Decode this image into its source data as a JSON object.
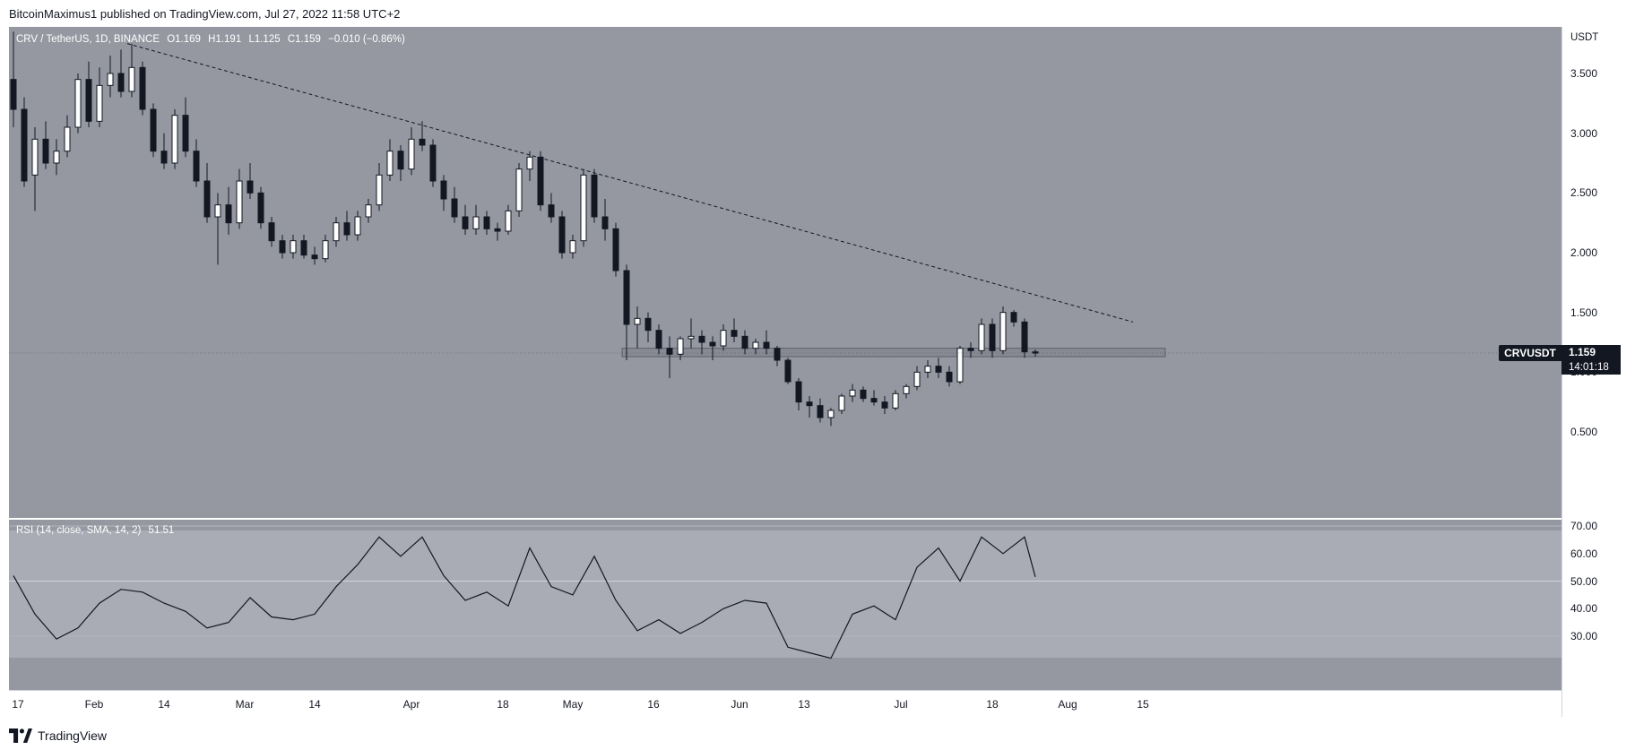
{
  "header": {
    "publisher_line": "BitcoinMaximus1 published on TradingView.com, Jul 27, 2022 11:58 UTC+2"
  },
  "footer": {
    "brand": "TradingView"
  },
  "price_pane": {
    "legend": {
      "symbol": "CRV / TetherUS, 1D, BINANCE",
      "open": "O1.169",
      "high": "H1.191",
      "low": "L1.125",
      "close": "C1.159",
      "change": "−0.010 (−0.86%)"
    },
    "axis_unit": "USDT",
    "y_ticks": [
      "3.500",
      "3.000",
      "2.500",
      "2.000",
      "1.500",
      "1.000",
      "0.500"
    ],
    "last": {
      "symbol": "CRVUSDT",
      "price": "1.159",
      "countdown": "14:01:18"
    }
  },
  "rsi_pane": {
    "legend": {
      "label": "RSI (14, close, SMA, 14, 2)",
      "value": "51.51"
    },
    "y_ticks": [
      "70.00",
      "60.00",
      "50.00",
      "40.00",
      "30.00"
    ]
  },
  "x_axis": {
    "labels": [
      "17",
      "Feb",
      "14",
      "Mar",
      "14",
      "Apr",
      "18",
      "May",
      "16",
      "Jun",
      "13",
      "Jul",
      "18",
      "Aug",
      "15"
    ]
  },
  "colors": {
    "background": "#9598a1",
    "rsi_band": "#a9acb4",
    "bull_candle": "#ffffff",
    "bear_candle": "#131722",
    "line": "#131722"
  },
  "chart_data": [
    {
      "type": "candlestick",
      "title": "CRV / TetherUS, 1D, BINANCE",
      "ylabel": "USDT",
      "ylim": [
        0.45,
        3.85
      ],
      "x_start": "2022-01-17",
      "x_end": "2022-07-27",
      "candles": [
        [
          "2022-01-17",
          3.45,
          3.85,
          3.05,
          3.2
        ],
        [
          "2022-01-19",
          3.2,
          3.3,
          2.55,
          2.6
        ],
        [
          "2022-01-21",
          2.65,
          3.05,
          2.35,
          2.95
        ],
        [
          "2022-01-23",
          2.95,
          3.1,
          2.7,
          2.75
        ],
        [
          "2022-01-25",
          2.75,
          2.95,
          2.65,
          2.85
        ],
        [
          "2022-01-27",
          2.85,
          3.15,
          2.8,
          3.05
        ],
        [
          "2022-01-29",
          3.05,
          3.5,
          3.0,
          3.45
        ],
        [
          "2022-01-31",
          3.45,
          3.6,
          3.05,
          3.1
        ],
        [
          "2022-02-02",
          3.1,
          3.55,
          3.05,
          3.4
        ],
        [
          "2022-02-04",
          3.4,
          3.65,
          3.3,
          3.5
        ],
        [
          "2022-02-06",
          3.5,
          3.7,
          3.3,
          3.35
        ],
        [
          "2022-02-08",
          3.35,
          3.75,
          3.3,
          3.55
        ],
        [
          "2022-02-10",
          3.55,
          3.6,
          3.15,
          3.2
        ],
        [
          "2022-02-12",
          3.2,
          3.25,
          2.8,
          2.85
        ],
        [
          "2022-02-14",
          2.85,
          3.0,
          2.7,
          2.75
        ],
        [
          "2022-02-16",
          2.75,
          3.2,
          2.7,
          3.15
        ],
        [
          "2022-02-18",
          3.15,
          3.3,
          2.8,
          2.85
        ],
        [
          "2022-02-20",
          2.85,
          2.95,
          2.55,
          2.6
        ],
        [
          "2022-02-22",
          2.6,
          2.75,
          2.25,
          2.3
        ],
        [
          "2022-02-24",
          2.3,
          2.5,
          1.9,
          2.4
        ],
        [
          "2022-02-26",
          2.4,
          2.55,
          2.15,
          2.25
        ],
        [
          "2022-02-28",
          2.25,
          2.7,
          2.2,
          2.6
        ],
        [
          "2022-03-02",
          2.6,
          2.75,
          2.45,
          2.5
        ],
        [
          "2022-03-04",
          2.5,
          2.55,
          2.2,
          2.25
        ],
        [
          "2022-03-06",
          2.25,
          2.3,
          2.05,
          2.1
        ],
        [
          "2022-03-08",
          2.1,
          2.15,
          1.95,
          2.0
        ],
        [
          "2022-03-10",
          2.0,
          2.15,
          1.95,
          2.1
        ],
        [
          "2022-03-12",
          2.1,
          2.15,
          1.95,
          1.98
        ],
        [
          "2022-03-14",
          1.98,
          2.05,
          1.9,
          1.95
        ],
        [
          "2022-03-16",
          1.95,
          2.15,
          1.92,
          2.1
        ],
        [
          "2022-03-18",
          2.1,
          2.3,
          2.05,
          2.25
        ],
        [
          "2022-03-20",
          2.25,
          2.35,
          2.1,
          2.15
        ],
        [
          "2022-03-22",
          2.15,
          2.35,
          2.1,
          2.3
        ],
        [
          "2022-03-24",
          2.3,
          2.45,
          2.25,
          2.4
        ],
        [
          "2022-03-26",
          2.4,
          2.75,
          2.35,
          2.65
        ],
        [
          "2022-03-28",
          2.65,
          2.95,
          2.6,
          2.85
        ],
        [
          "2022-03-30",
          2.85,
          2.9,
          2.6,
          2.7
        ],
        [
          "2022-04-01",
          2.7,
          3.05,
          2.65,
          2.95
        ],
        [
          "2022-04-03",
          2.95,
          3.1,
          2.85,
          2.9
        ],
        [
          "2022-04-05",
          2.9,
          2.95,
          2.55,
          2.6
        ],
        [
          "2022-04-07",
          2.6,
          2.65,
          2.35,
          2.45
        ],
        [
          "2022-04-09",
          2.45,
          2.55,
          2.25,
          2.3
        ],
        [
          "2022-04-11",
          2.3,
          2.4,
          2.15,
          2.2
        ],
        [
          "2022-04-13",
          2.2,
          2.4,
          2.15,
          2.3
        ],
        [
          "2022-04-15",
          2.3,
          2.35,
          2.15,
          2.2
        ],
        [
          "2022-04-17",
          2.2,
          2.25,
          2.1,
          2.18
        ],
        [
          "2022-04-19",
          2.18,
          2.4,
          2.15,
          2.35
        ],
        [
          "2022-04-21",
          2.35,
          2.75,
          2.3,
          2.7
        ],
        [
          "2022-04-23",
          2.7,
          2.85,
          2.6,
          2.8
        ],
        [
          "2022-04-25",
          2.8,
          2.85,
          2.35,
          2.4
        ],
        [
          "2022-04-27",
          2.4,
          2.5,
          2.25,
          2.3
        ],
        [
          "2022-04-29",
          2.3,
          2.35,
          1.95,
          2.0
        ],
        [
          "2022-05-01",
          2.0,
          2.15,
          1.95,
          2.1
        ],
        [
          "2022-05-03",
          2.1,
          2.7,
          2.05,
          2.65
        ],
        [
          "2022-05-05",
          2.65,
          2.7,
          2.25,
          2.3
        ],
        [
          "2022-05-07",
          2.3,
          2.45,
          2.1,
          2.2
        ],
        [
          "2022-05-09",
          2.2,
          2.25,
          1.8,
          1.85
        ],
        [
          "2022-05-11",
          1.85,
          1.9,
          1.1,
          1.4
        ],
        [
          "2022-05-13",
          1.4,
          1.55,
          1.2,
          1.45
        ],
        [
          "2022-05-15",
          1.45,
          1.5,
          1.25,
          1.35
        ],
        [
          "2022-05-17",
          1.35,
          1.4,
          1.15,
          1.2
        ],
        [
          "2022-05-19",
          1.2,
          1.3,
          0.95,
          1.15
        ],
        [
          "2022-05-21",
          1.15,
          1.3,
          1.1,
          1.28
        ],
        [
          "2022-05-23",
          1.28,
          1.45,
          1.2,
          1.3
        ],
        [
          "2022-05-25",
          1.3,
          1.35,
          1.15,
          1.25
        ],
        [
          "2022-05-27",
          1.25,
          1.3,
          1.1,
          1.22
        ],
        [
          "2022-05-29",
          1.22,
          1.4,
          1.18,
          1.35
        ],
        [
          "2022-05-31",
          1.35,
          1.45,
          1.25,
          1.3
        ],
        [
          "2022-06-02",
          1.3,
          1.35,
          1.15,
          1.2
        ],
        [
          "2022-06-04",
          1.2,
          1.28,
          1.15,
          1.25
        ],
        [
          "2022-06-06",
          1.25,
          1.35,
          1.15,
          1.2
        ],
        [
          "2022-06-08",
          1.2,
          1.22,
          1.05,
          1.1
        ],
        [
          "2022-06-10",
          1.1,
          1.12,
          0.9,
          0.92
        ],
        [
          "2022-06-12",
          0.92,
          0.95,
          0.68,
          0.75
        ],
        [
          "2022-06-14",
          0.75,
          0.8,
          0.62,
          0.72
        ],
        [
          "2022-06-16",
          0.72,
          0.78,
          0.58,
          0.62
        ],
        [
          "2022-06-18",
          0.62,
          0.7,
          0.55,
          0.68
        ],
        [
          "2022-06-20",
          0.68,
          0.82,
          0.65,
          0.8
        ],
        [
          "2022-06-22",
          0.8,
          0.9,
          0.75,
          0.85
        ],
        [
          "2022-06-24",
          0.85,
          0.88,
          0.75,
          0.78
        ],
        [
          "2022-06-26",
          0.78,
          0.85,
          0.72,
          0.75
        ],
        [
          "2022-06-28",
          0.75,
          0.8,
          0.65,
          0.7
        ],
        [
          "2022-06-30",
          0.7,
          0.85,
          0.68,
          0.82
        ],
        [
          "2022-07-02",
          0.82,
          0.9,
          0.78,
          0.88
        ],
        [
          "2022-07-04",
          0.88,
          1.05,
          0.85,
          1.0
        ],
        [
          "2022-07-06",
          1.0,
          1.1,
          0.95,
          1.05
        ],
        [
          "2022-07-08",
          1.05,
          1.12,
          0.95,
          1.0
        ],
        [
          "2022-07-10",
          1.0,
          1.05,
          0.88,
          0.92
        ],
        [
          "2022-07-12",
          0.92,
          1.22,
          0.9,
          1.2
        ],
        [
          "2022-07-14",
          1.2,
          1.25,
          1.12,
          1.18
        ],
        [
          "2022-07-16",
          1.18,
          1.45,
          1.15,
          1.4
        ],
        [
          "2022-07-18",
          1.4,
          1.45,
          1.12,
          1.18
        ],
        [
          "2022-07-20",
          1.18,
          1.55,
          1.15,
          1.5
        ],
        [
          "2022-07-22",
          1.5,
          1.52,
          1.38,
          1.42
        ],
        [
          "2022-07-24",
          1.42,
          1.45,
          1.12,
          1.17
        ],
        [
          "2022-07-26",
          1.17,
          1.19,
          1.13,
          1.16
        ]
      ],
      "trendline": {
        "from": [
          "2022-02-08",
          3.75
        ],
        "to": [
          "2022-08-14",
          1.42
        ],
        "style": "dashed"
      },
      "support_zone": {
        "from": "2022-05-11",
        "to": "2022-08-20",
        "low": 1.13,
        "high": 1.2
      }
    },
    {
      "type": "line",
      "title": "RSI (14, close, SMA, 14, 2)",
      "ylim": [
        20,
        72
      ],
      "bands": [
        30,
        70
      ],
      "midline": 50,
      "x": [
        "2022-01-17",
        "2022-01-21",
        "2022-01-25",
        "2022-01-29",
        "2022-02-02",
        "2022-02-06",
        "2022-02-10",
        "2022-02-14",
        "2022-02-18",
        "2022-02-22",
        "2022-02-26",
        "2022-03-02",
        "2022-03-06",
        "2022-03-10",
        "2022-03-14",
        "2022-03-18",
        "2022-03-22",
        "2022-03-26",
        "2022-03-30",
        "2022-04-03",
        "2022-04-07",
        "2022-04-11",
        "2022-04-15",
        "2022-04-19",
        "2022-04-23",
        "2022-04-27",
        "2022-05-01",
        "2022-05-05",
        "2022-05-09",
        "2022-05-13",
        "2022-05-17",
        "2022-05-21",
        "2022-05-25",
        "2022-05-29",
        "2022-06-02",
        "2022-06-06",
        "2022-06-10",
        "2022-06-14",
        "2022-06-18",
        "2022-06-22",
        "2022-06-26",
        "2022-06-30",
        "2022-07-04",
        "2022-07-08",
        "2022-07-12",
        "2022-07-16",
        "2022-07-20",
        "2022-07-24",
        "2022-07-26"
      ],
      "values": [
        52,
        38,
        29,
        33,
        42,
        47,
        46,
        42,
        39,
        33,
        35,
        44,
        37,
        36,
        38,
        48,
        56,
        66,
        59,
        66,
        52,
        43,
        46,
        41,
        62,
        48,
        45,
        59,
        43,
        32,
        36,
        31,
        35,
        40,
        43,
        42,
        26,
        24,
        22,
        38,
        41,
        36,
        55,
        62,
        50,
        66,
        60,
        66,
        51.51
      ]
    }
  ]
}
